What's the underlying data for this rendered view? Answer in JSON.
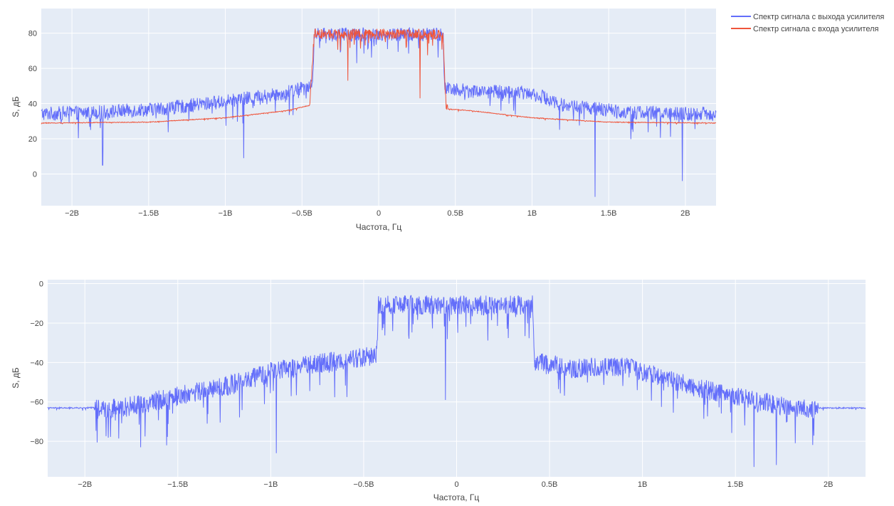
{
  "colors": {
    "output_series": "#636efa",
    "input_series": "#ef553b",
    "plot_bg": "#e5ecf6",
    "grid": "#ffffff"
  },
  "legend": {
    "placement": "top-right",
    "items": [
      {
        "label": "Спектр сигнала с выхода усилителя",
        "color": "#636efa"
      },
      {
        "label": "Спектр сигнала с входа усилителя",
        "color": "#ef553b"
      }
    ]
  },
  "chart_data": [
    {
      "type": "line",
      "xlabel": "Частота, Гц",
      "ylabel": "S, дБ",
      "xlim": [
        -2.2,
        2.2
      ],
      "ylim": [
        -18,
        94
      ],
      "x_unit_note": "B = 1e9",
      "xticks": [
        {
          "value": -2,
          "label": "−2B"
        },
        {
          "value": -1.5,
          "label": "−1.5B"
        },
        {
          "value": -1,
          "label": "−1B"
        },
        {
          "value": -0.5,
          "label": "−0.5B"
        },
        {
          "value": 0,
          "label": "0"
        },
        {
          "value": 0.5,
          "label": "0.5B"
        },
        {
          "value": 1,
          "label": "1B"
        },
        {
          "value": 1.5,
          "label": "1.5B"
        },
        {
          "value": 2,
          "label": "2B"
        }
      ],
      "yticks": [
        {
          "value": 0,
          "label": "0"
        },
        {
          "value": 20,
          "label": "20"
        },
        {
          "value": 40,
          "label": "40"
        },
        {
          "value": 60,
          "label": "60"
        },
        {
          "value": 80,
          "label": "80"
        }
      ],
      "series": [
        {
          "name": "Спектр сигнала с выхода усилителя",
          "color": "#636efa",
          "envelope_x": [
            -2.2,
            -1.8,
            -1.4,
            -1.0,
            -0.6,
            -0.43,
            -0.42,
            0.0,
            0.42,
            0.43,
            0.6,
            1.0,
            1.2,
            1.6,
            2.0,
            2.2
          ],
          "envelope_y": [
            35,
            36,
            38,
            42,
            47,
            52,
            80,
            80,
            80,
            50,
            48,
            47,
            40,
            36,
            35,
            35
          ],
          "noise_amplitude": 8,
          "notable_dips": [
            {
              "x": 1.41,
              "y": -13
            },
            {
              "x": 1.98,
              "y": -4
            },
            {
              "x": -0.88,
              "y": 9
            },
            {
              "x": -1.8,
              "y": 5
            }
          ]
        },
        {
          "name": "Спектр сигнала с входа усилителя",
          "color": "#ef553b",
          "envelope_x": [
            -2.2,
            -1.5,
            -1.0,
            -0.6,
            -0.45,
            -0.42,
            0.0,
            0.42,
            0.44,
            0.6,
            1.0,
            1.5,
            2.2
          ],
          "envelope_y": [
            29,
            29.5,
            32,
            36,
            39,
            80,
            80,
            80,
            37,
            36,
            32,
            29.5,
            29
          ],
          "noise_amplitude": 6,
          "notable_dips": [
            {
              "x": 0.27,
              "y": 43
            },
            {
              "x": -0.2,
              "y": 53
            }
          ]
        }
      ]
    },
    {
      "type": "line",
      "xlabel": "Частота, Гц",
      "ylabel": "S, дБ",
      "xlim": [
        -2.2,
        2.2
      ],
      "ylim": [
        -98,
        2
      ],
      "x_unit_note": "B = 1e9",
      "xticks": [
        {
          "value": -2,
          "label": "−2B"
        },
        {
          "value": -1.5,
          "label": "−1.5B"
        },
        {
          "value": -1,
          "label": "−1B"
        },
        {
          "value": -0.5,
          "label": "−0.5B"
        },
        {
          "value": 0,
          "label": "0"
        },
        {
          "value": 0.5,
          "label": "0.5B"
        },
        {
          "value": 1,
          "label": "1B"
        },
        {
          "value": 1.5,
          "label": "1.5B"
        },
        {
          "value": 2,
          "label": "2B"
        }
      ],
      "yticks": [
        {
          "value": 0,
          "label": "0"
        },
        {
          "value": -20,
          "label": "−20"
        },
        {
          "value": -40,
          "label": "−40"
        },
        {
          "value": -60,
          "label": "−60"
        },
        {
          "value": -80,
          "label": "−80"
        }
      ],
      "series": [
        {
          "name": "Спектр сигнала с выхода усилителя",
          "color": "#636efa",
          "envelope_x": [
            -2.2,
            -2.0,
            -1.8,
            -1.6,
            -1.4,
            -1.2,
            -1.0,
            -0.8,
            -0.6,
            -0.43,
            -0.42,
            0.0,
            0.41,
            0.42,
            0.6,
            0.9,
            1.1,
            1.3,
            1.5,
            1.7,
            1.9,
            2.2
          ],
          "envelope_y": [
            -63,
            -63,
            -62,
            -58,
            -54,
            -50,
            -44,
            -40,
            -38,
            -35,
            -10,
            -10,
            -10,
            -38,
            -42,
            -41,
            -46,
            -52,
            -56,
            -60,
            -63,
            -63
          ],
          "noise_amplitude": 10,
          "notable_dips": [
            {
              "x": -0.06,
              "y": -59
            },
            {
              "x": 1.6,
              "y": -93
            },
            {
              "x": 1.72,
              "y": -92
            },
            {
              "x": -1.7,
              "y": -83
            },
            {
              "x": -1.56,
              "y": -82
            },
            {
              "x": -0.97,
              "y": -86
            }
          ]
        }
      ]
    }
  ]
}
